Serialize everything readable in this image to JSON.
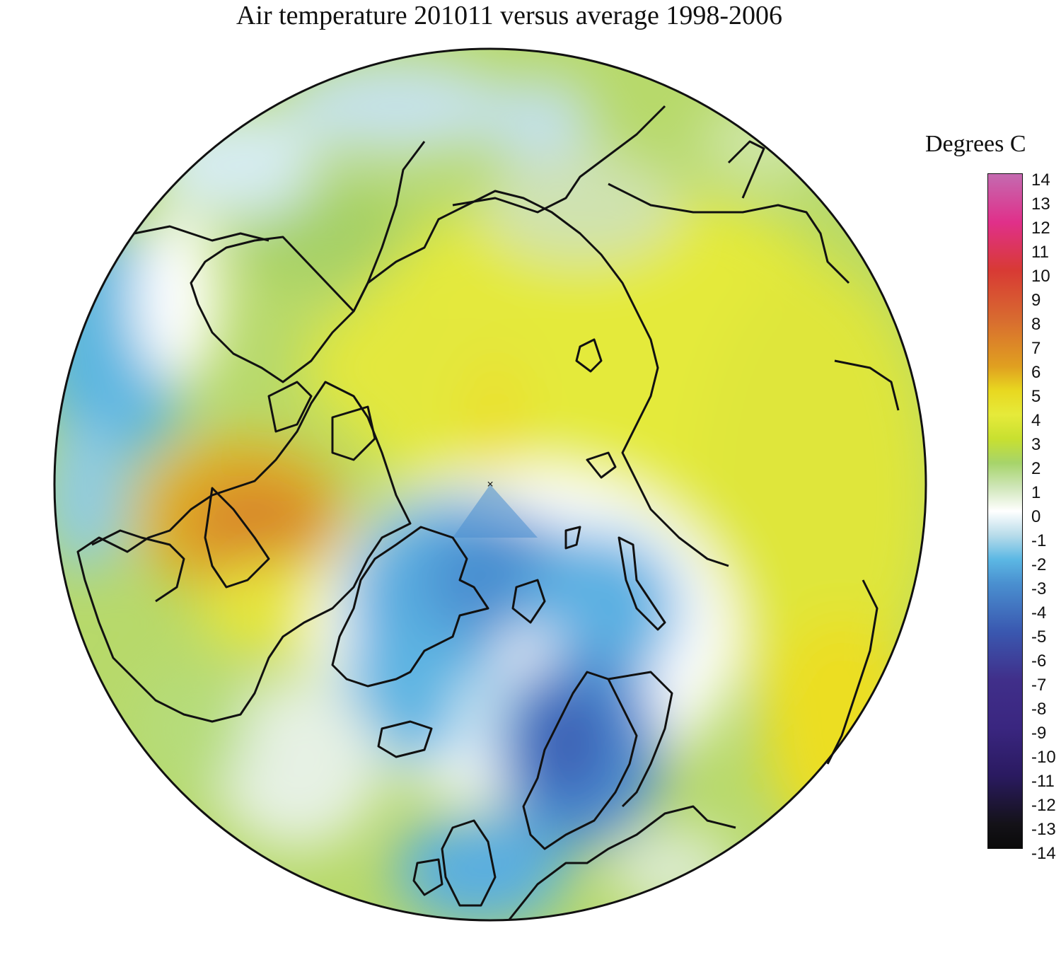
{
  "title": "Air temperature 201011 versus average 1998-2006",
  "units_label": "Degrees C",
  "colorbar": {
    "ticks": [
      "14",
      "13",
      "12",
      "11",
      "10",
      "9",
      "8",
      "7",
      "6",
      "5",
      "4",
      "3",
      "2",
      "1",
      "0",
      "-1",
      "-2",
      "-3",
      "-4",
      "-5",
      "-6",
      "-7",
      "-8",
      "-9",
      "-10",
      "-11",
      "-12",
      "-13",
      "-14"
    ],
    "stops": [
      {
        "value": 14,
        "color": "#c46ab0"
      },
      {
        "value": 12,
        "color": "#e0308a"
      },
      {
        "value": 10,
        "color": "#d83a34"
      },
      {
        "value": 8,
        "color": "#d86a30"
      },
      {
        "value": 6,
        "color": "#e0a020"
      },
      {
        "value": 5,
        "color": "#e8d820"
      },
      {
        "value": 4,
        "color": "#e6ea3a"
      },
      {
        "value": 3,
        "color": "#c8e030"
      },
      {
        "value": 2,
        "color": "#a6d46a"
      },
      {
        "value": 1,
        "color": "#cfe6b8"
      },
      {
        "value": 0,
        "color": "#ffffff"
      },
      {
        "value": -1,
        "color": "#b8dcea"
      },
      {
        "value": -2,
        "color": "#5cb8e4"
      },
      {
        "value": -3,
        "color": "#4a90d0"
      },
      {
        "value": -5,
        "color": "#3a58b0"
      },
      {
        "value": -7,
        "color": "#402f8a"
      },
      {
        "value": -9,
        "color": "#3a2680"
      },
      {
        "value": -11,
        "color": "#2a1a60"
      },
      {
        "value": -13,
        "color": "#141218"
      },
      {
        "value": -14,
        "color": "#0a0a0a"
      }
    ]
  },
  "map": {
    "projection": "north polar stereographic",
    "field": "air temperature anomaly",
    "regions": [
      {
        "name": "Arctic Ocean / Siberia warm anomaly",
        "anomaly": 4
      },
      {
        "name": "Baffin Bay / W Greenland warm anomaly",
        "anomaly": 7
      },
      {
        "name": "Alaska / Yukon warm anomaly",
        "anomaly": 3
      },
      {
        "name": "North Atlantic / Scandinavia cold anomaly",
        "anomaly": -4
      },
      {
        "name": "Western Canada cold anomaly",
        "anomaly": -2
      }
    ]
  }
}
